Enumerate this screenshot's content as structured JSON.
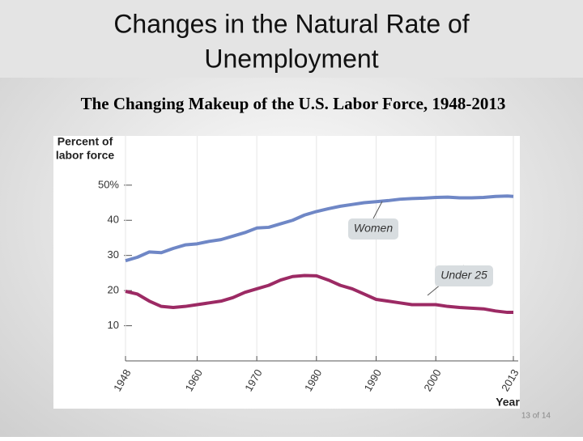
{
  "slide": {
    "title_lines": [
      "Changes in the Natural Rate of",
      "Unemployment"
    ],
    "subtitle": "The Changing Makeup of the U.S. Labor Force, 1948-2013",
    "page": "13 of 14"
  },
  "chart_data": {
    "type": "line",
    "ylabel_lines": [
      "Percent of",
      "labor force"
    ],
    "xlabel": "Year",
    "x": [
      1948,
      1950,
      1952,
      1954,
      1956,
      1958,
      1960,
      1962,
      1964,
      1966,
      1968,
      1970,
      1972,
      1974,
      1976,
      1978,
      1980,
      1982,
      1984,
      1986,
      1988,
      1990,
      1992,
      1994,
      1996,
      1998,
      2000,
      2002,
      2004,
      2006,
      2008,
      2010,
      2012,
      2013
    ],
    "series": [
      {
        "name": "Women",
        "color": "#6f87c6",
        "values": [
          28.5,
          29.5,
          31,
          30.8,
          32,
          33,
          33.3,
          34,
          34.5,
          35.5,
          36.5,
          37.8,
          38,
          39,
          40,
          41.5,
          42.5,
          43.3,
          44,
          44.5,
          45,
          45.3,
          45.6,
          46,
          46.2,
          46.3,
          46.5,
          46.6,
          46.4,
          46.4,
          46.5,
          46.8,
          46.9,
          46.8
        ]
      },
      {
        "name": "Under 25",
        "color": "#9c2a64",
        "values": [
          19.8,
          19,
          17,
          15.5,
          15.2,
          15.5,
          16,
          16.5,
          17,
          18,
          19.5,
          20.5,
          21.5,
          23,
          24,
          24.3,
          24.2,
          23,
          21.5,
          20.5,
          19,
          17.5,
          17,
          16.5,
          16,
          16,
          16,
          15.5,
          15.2,
          15,
          14.8,
          14.2,
          13.8,
          13.8
        ]
      }
    ],
    "xlim": [
      1948,
      2013
    ],
    "xticks": [
      1948,
      1960,
      1970,
      1980,
      1990,
      2000,
      2013
    ],
    "ylim": [
      0,
      64
    ],
    "yticks": [
      10,
      20,
      30,
      40,
      {
        "value": 50,
        "label": "50%"
      }
    ],
    "grid": true
  }
}
